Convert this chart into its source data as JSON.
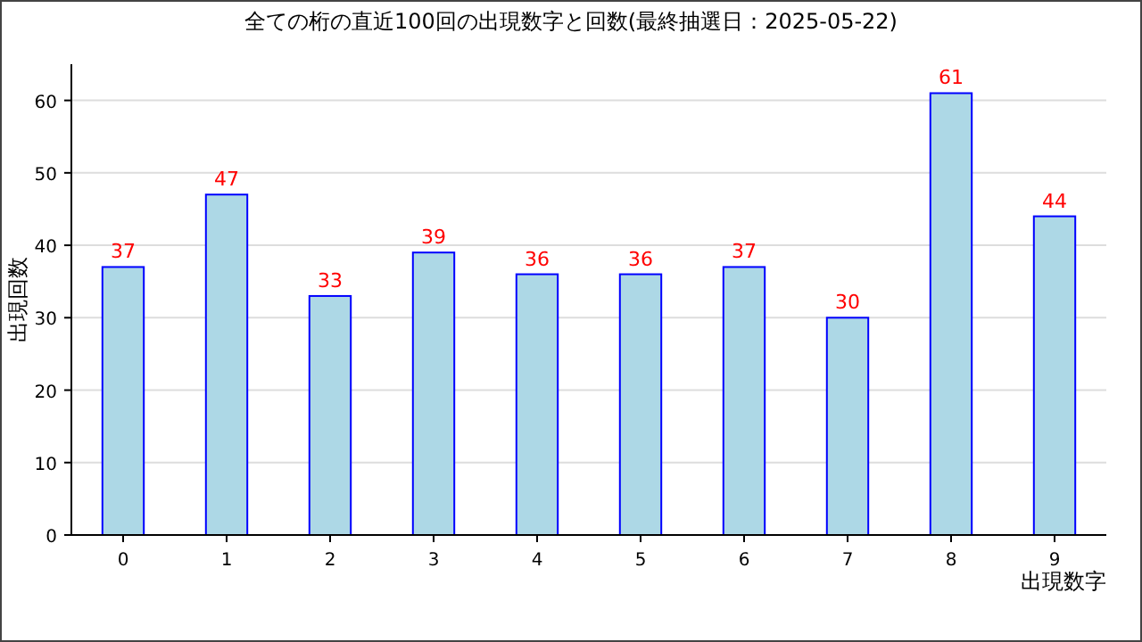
{
  "chart_data": {
    "type": "bar",
    "title": "全ての桁の直近100回の出現数字と回数(最終抽選日：2025-05-22)",
    "xlabel": "出現数字",
    "ylabel": "出現回数",
    "categories": [
      "0",
      "1",
      "2",
      "3",
      "4",
      "5",
      "6",
      "7",
      "8",
      "9"
    ],
    "values": [
      37,
      47,
      33,
      39,
      36,
      36,
      37,
      30,
      61,
      44
    ],
    "color": "#add8e6",
    "ylim": [
      0,
      65
    ],
    "yticks": [
      0,
      10,
      20,
      30,
      40,
      50,
      60
    ],
    "grid": "y",
    "data_labels": true
  }
}
